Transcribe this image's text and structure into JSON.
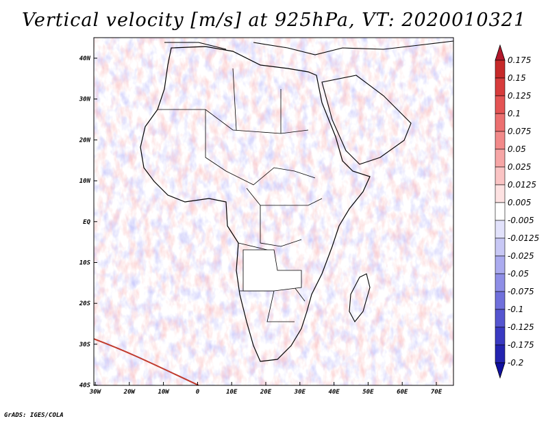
{
  "title": "Vertical velocity [m/s] at 925hPa, VT: 2020010321",
  "credit": "GrADS: IGES/COLA",
  "map": {
    "lon_range": [
      -30,
      77
    ],
    "lat_range": [
      -40,
      45
    ],
    "lat_labels": [
      "40N",
      "30N",
      "20N",
      "10N",
      "EQ",
      "10S",
      "20S",
      "30S",
      "40S"
    ],
    "lon_labels": [
      "30W",
      "20W",
      "10W",
      "0",
      "10E",
      "20E",
      "30E",
      "40E",
      "50E",
      "60E",
      "70E"
    ]
  },
  "colorbar": {
    "labels": [
      "0.175",
      "0.15",
      "0.125",
      "0.1",
      "0.075",
      "0.05",
      "0.025",
      "0.0125",
      "0.005",
      "-0.005",
      "-0.0125",
      "-0.025",
      "-0.05",
      "-0.075",
      "-0.1",
      "-0.125",
      "-0.175",
      "-0.2"
    ],
    "colors": [
      "#b2182b",
      "#c62a2a",
      "#d73c3c",
      "#e45454",
      "#ec7070",
      "#f28a8a",
      "#f6a6a6",
      "#fac4c4",
      "#fde2e2",
      "#ffffff",
      "#e2e2fb",
      "#c8c8f5",
      "#ababef",
      "#8e8ee6",
      "#7070dc",
      "#5555d0",
      "#3a3ac2",
      "#2424b0",
      "#1010a0"
    ]
  }
}
